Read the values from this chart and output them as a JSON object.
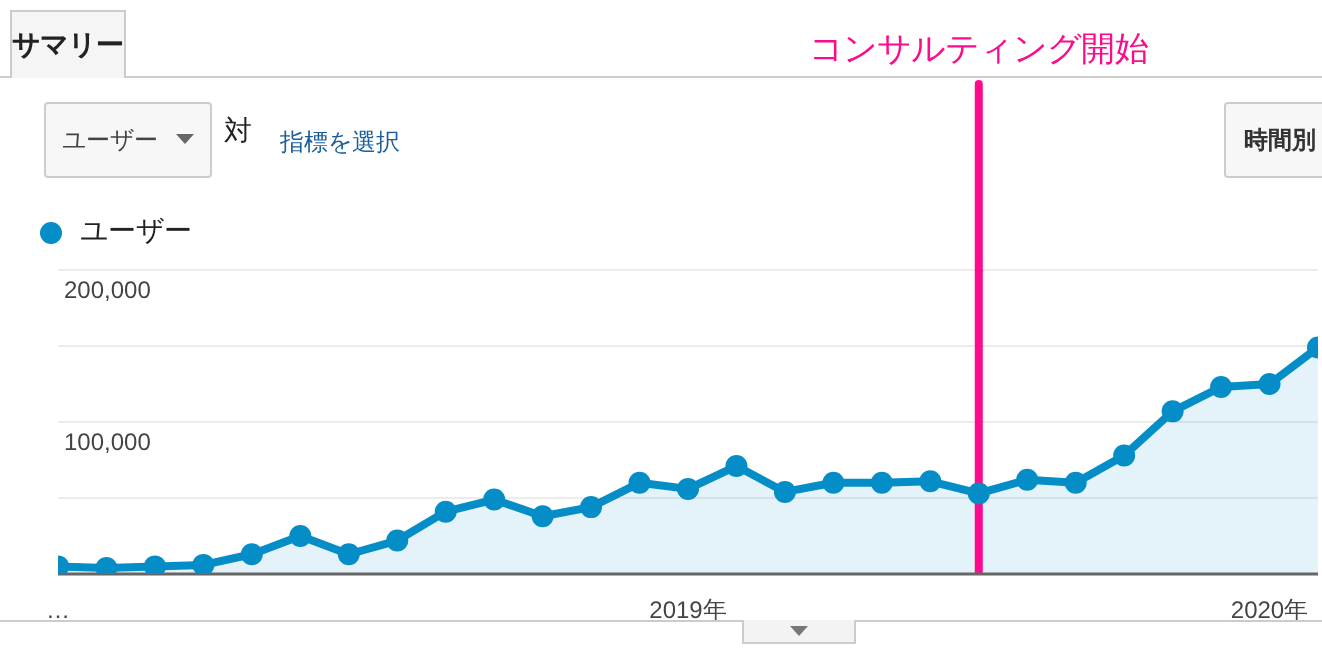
{
  "chart_data": {
    "type": "area",
    "x": [
      "2017-12",
      "2018-01",
      "2018-02",
      "2018-03",
      "2018-04",
      "2018-05",
      "2018-06",
      "2018-07",
      "2018-08",
      "2018-09",
      "2018-10",
      "2018-11",
      "2018-12",
      "2019-01",
      "2019-02",
      "2019-03",
      "2019-04",
      "2019-05",
      "2019-06",
      "2019-07",
      "2019-08",
      "2019-09",
      "2019-10",
      "2019-11",
      "2019-12",
      "2020-01",
      "2020-02"
    ],
    "series": [
      {
        "name": "ユーザー",
        "color": "#058dc7",
        "values": [
          5000,
          4000,
          5000,
          6000,
          13000,
          25000,
          13000,
          22000,
          41000,
          49000,
          38000,
          44000,
          60000,
          56000,
          71000,
          54000,
          60000,
          60000,
          61000,
          53000,
          62000,
          60000,
          78000,
          107000,
          123000,
          125000,
          149000
        ]
      }
    ],
    "xlim": [
      "2017-12",
      "2020-02"
    ],
    "xticks": [
      {
        "value": "2017-12",
        "label": "…"
      },
      {
        "value": "2019-01",
        "label": "2019年"
      },
      {
        "value": "2020-01",
        "label": "2020年"
      }
    ],
    "ylim": [
      0,
      200000
    ],
    "yticks": [
      {
        "value": 0,
        "label": null
      },
      {
        "value": 50000,
        "label": null
      },
      {
        "value": 100000,
        "label": "100,000"
      },
      {
        "value": 150000,
        "label": null
      },
      {
        "value": 200000,
        "label": "200,000"
      }
    ],
    "grid": "y",
    "legend": "top left",
    "marker": "circle",
    "ref_lines": [
      {
        "axis": "x",
        "value": "2019-07",
        "label": "コンサルティング開始",
        "color": "#ff0a8c"
      }
    ],
    "annotations": [
      "サマリー",
      "ユーザー",
      "対",
      "指標を選択",
      "時間別"
    ]
  }
}
